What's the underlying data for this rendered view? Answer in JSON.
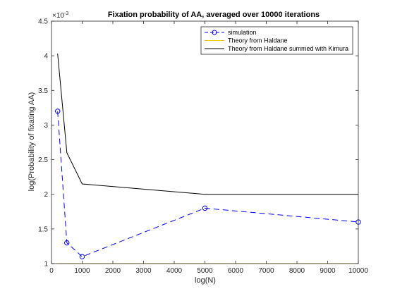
{
  "chart_data": {
    "type": "line",
    "title": "Fixation probability of AA, averaged over 10000 iterations",
    "xlabel": "log(N)",
    "ylabel": "log(Probability of fixating AA)",
    "xlim": [
      0,
      10000
    ],
    "ylim": [
      1,
      4.5
    ],
    "y_multiplier_label": "×10",
    "y_multiplier_exponent": "-3",
    "x_ticks": [
      0,
      1000,
      2000,
      3000,
      4000,
      5000,
      6000,
      7000,
      8000,
      9000,
      10000
    ],
    "y_ticks": [
      1,
      1.5,
      2,
      2.5,
      3,
      3.5,
      4,
      4.5
    ],
    "x_tick_labels": [
      "0",
      "1000",
      "2000",
      "3000",
      "4000",
      "5000",
      "6000",
      "7000",
      "8000",
      "9000",
      "10000"
    ],
    "y_tick_labels": [
      "1",
      "1.5",
      "2",
      "2.5",
      "3",
      "3.5",
      "4",
      "4.5"
    ],
    "grid": false,
    "legend_position": "top-right",
    "series": [
      {
        "name": "simulation",
        "color": "#0000ff",
        "style": "dashed",
        "marker": "circle",
        "x": [
          200,
          500,
          1000,
          5000,
          10000
        ],
        "y": [
          3.2,
          1.3,
          1.1,
          1.8,
          1.6
        ]
      },
      {
        "name": "Theory from Haldane",
        "color": "#e6c800",
        "style": "solid",
        "marker": "none",
        "x": [
          200,
          500,
          1000,
          5000,
          10000
        ],
        "y": [
          1.0,
          1.0,
          1.0,
          1.0,
          1.0
        ]
      },
      {
        "name": "Theory from Haldane summed with Kimura",
        "color": "#000000",
        "style": "solid",
        "marker": "none",
        "x": [
          200,
          500,
          1000,
          5000,
          10000
        ],
        "y": [
          4.03,
          2.6,
          2.15,
          2.0,
          2.0
        ]
      }
    ]
  }
}
